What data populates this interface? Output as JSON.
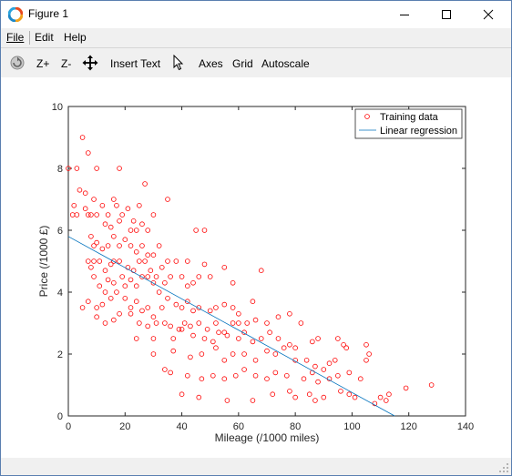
{
  "window": {
    "title": "Figure 1"
  },
  "menu": {
    "file": "File",
    "edit": "Edit",
    "help": "Help"
  },
  "toolbar": {
    "zoom_in": "Z+",
    "zoom_out": "Z-",
    "insert_text": "Insert Text",
    "axes": "Axes",
    "grid": "Grid",
    "autoscale": "Autoscale"
  },
  "chart_data": {
    "type": "scatter",
    "xlabel": "Mileage (/1000 miles)",
    "ylabel": "Price (/1000 £)",
    "xlim": [
      0,
      140
    ],
    "ylim": [
      0,
      10
    ],
    "xticks": [
      0,
      20,
      40,
      60,
      80,
      100,
      120,
      140
    ],
    "yticks": [
      0,
      2,
      4,
      6,
      8,
      10
    ],
    "legend_position": "top-right",
    "colors": {
      "training": "#ff0000",
      "regression": "#0072bd"
    },
    "series": [
      {
        "name": "Training data",
        "kind": "markers",
        "points": [
          [
            0,
            8
          ],
          [
            3,
            8
          ],
          [
            5,
            9
          ],
          [
            7,
            8.5
          ],
          [
            10,
            8
          ],
          [
            18,
            8
          ],
          [
            27,
            7.5
          ],
          [
            35,
            7
          ],
          [
            4,
            7.3
          ],
          [
            6,
            7.2
          ],
          [
            2,
            6.8
          ],
          [
            1.5,
            6.5
          ],
          [
            3,
            6.5
          ],
          [
            6,
            6.7
          ],
          [
            7,
            6.5
          ],
          [
            8,
            6.5
          ],
          [
            9,
            7
          ],
          [
            10,
            6.5
          ],
          [
            12,
            6.8
          ],
          [
            14,
            6.5
          ],
          [
            16,
            7
          ],
          [
            17,
            6.8
          ],
          [
            19,
            6.5
          ],
          [
            21,
            6.7
          ],
          [
            23,
            6.3
          ],
          [
            25,
            6.8
          ],
          [
            13,
            6.2
          ],
          [
            15,
            6.1
          ],
          [
            18,
            6.3
          ],
          [
            22,
            6
          ],
          [
            24,
            6
          ],
          [
            26,
            6.2
          ],
          [
            30,
            6.5
          ],
          [
            28,
            6
          ],
          [
            8,
            5.8
          ],
          [
            9,
            5.5
          ],
          [
            10,
            5.6
          ],
          [
            12,
            5.4
          ],
          [
            14,
            5.5
          ],
          [
            16,
            5.8
          ],
          [
            18,
            5.5
          ],
          [
            20,
            5.7
          ],
          [
            22,
            5.5
          ],
          [
            24,
            5.3
          ],
          [
            26,
            5.5
          ],
          [
            28,
            5.2
          ],
          [
            30,
            5.2
          ],
          [
            32,
            5.5
          ],
          [
            45,
            6
          ],
          [
            48,
            6
          ],
          [
            7,
            5
          ],
          [
            8,
            4.8
          ],
          [
            9,
            5
          ],
          [
            11,
            5
          ],
          [
            13,
            4.7
          ],
          [
            15,
            4.9
          ],
          [
            16,
            5
          ],
          [
            18,
            5
          ],
          [
            19,
            4.5
          ],
          [
            21,
            4.8
          ],
          [
            23,
            4.7
          ],
          [
            25,
            5
          ],
          [
            27,
            5
          ],
          [
            29,
            4.7
          ],
          [
            31,
            4.5
          ],
          [
            33,
            4.8
          ],
          [
            35,
            5
          ],
          [
            38,
            5
          ],
          [
            42,
            5
          ],
          [
            48,
            4.9
          ],
          [
            55,
            4.8
          ],
          [
            9,
            4.5
          ],
          [
            11,
            4.2
          ],
          [
            13,
            4
          ],
          [
            14,
            4.4
          ],
          [
            16,
            4.3
          ],
          [
            17,
            4
          ],
          [
            20,
            4.2
          ],
          [
            22,
            4.4
          ],
          [
            24,
            4.2
          ],
          [
            26,
            4.5
          ],
          [
            28,
            4.5
          ],
          [
            30,
            4.3
          ],
          [
            32,
            4
          ],
          [
            34,
            4.3
          ],
          [
            36,
            4.5
          ],
          [
            40,
            4.5
          ],
          [
            42,
            4.2
          ],
          [
            44,
            4.3
          ],
          [
            46,
            4.5
          ],
          [
            50,
            4.5
          ],
          [
            58,
            4.3
          ],
          [
            68,
            4.7
          ],
          [
            5,
            3.5
          ],
          [
            7,
            3.7
          ],
          [
            10,
            3.5
          ],
          [
            12,
            3.6
          ],
          [
            15,
            3.8
          ],
          [
            18,
            3.3
          ],
          [
            20,
            3.8
          ],
          [
            22,
            3.5
          ],
          [
            24,
            3.7
          ],
          [
            26,
            3.4
          ],
          [
            28,
            3.5
          ],
          [
            30,
            3.2
          ],
          [
            33,
            3.5
          ],
          [
            35,
            3.8
          ],
          [
            38,
            3.6
          ],
          [
            40,
            3.5
          ],
          [
            42,
            3.7
          ],
          [
            44,
            3.4
          ],
          [
            46,
            3.5
          ],
          [
            50,
            3.4
          ],
          [
            52,
            3.5
          ],
          [
            55,
            3.6
          ],
          [
            58,
            3.5
          ],
          [
            60,
            3.3
          ],
          [
            65,
            3.7
          ],
          [
            10,
            3.2
          ],
          [
            13,
            3
          ],
          [
            16,
            3.1
          ],
          [
            22,
            3.3
          ],
          [
            25,
            3
          ],
          [
            28,
            2.9
          ],
          [
            31,
            3
          ],
          [
            34,
            3
          ],
          [
            36,
            2.9
          ],
          [
            39,
            2.8
          ],
          [
            41,
            3
          ],
          [
            43,
            2.9
          ],
          [
            46,
            3
          ],
          [
            49,
            2.8
          ],
          [
            52,
            3
          ],
          [
            55,
            2.7
          ],
          [
            58,
            3
          ],
          [
            60,
            3
          ],
          [
            63,
            3
          ],
          [
            66,
            3.1
          ],
          [
            70,
            3
          ],
          [
            74,
            3.2
          ],
          [
            78,
            3.3
          ],
          [
            82,
            3
          ],
          [
            24,
            2.5
          ],
          [
            30,
            2.5
          ],
          [
            37,
            2.5
          ],
          [
            40,
            2.8
          ],
          [
            44,
            2.6
          ],
          [
            48,
            2.5
          ],
          [
            51,
            2.4
          ],
          [
            53,
            2.7
          ],
          [
            56,
            2.6
          ],
          [
            60,
            2.5
          ],
          [
            62,
            2.7
          ],
          [
            65,
            2.4
          ],
          [
            68,
            2.5
          ],
          [
            71,
            2.7
          ],
          [
            74,
            2.5
          ],
          [
            78,
            2.3
          ],
          [
            80,
            2.2
          ],
          [
            86,
            2.4
          ],
          [
            88,
            2.5
          ],
          [
            95,
            2.5
          ],
          [
            97,
            2.3
          ],
          [
            98,
            2.2
          ],
          [
            30,
            2
          ],
          [
            37,
            2.1
          ],
          [
            43,
            1.9
          ],
          [
            47,
            2
          ],
          [
            52,
            2.2
          ],
          [
            55,
            1.8
          ],
          [
            58,
            2
          ],
          [
            62,
            2
          ],
          [
            66,
            1.8
          ],
          [
            70,
            2.1
          ],
          [
            73,
            2
          ],
          [
            76,
            2.2
          ],
          [
            80,
            1.8
          ],
          [
            84,
            1.8
          ],
          [
            87,
            1.6
          ],
          [
            90,
            1.5
          ],
          [
            92,
            1.7
          ],
          [
            94,
            1.8
          ],
          [
            106,
            2
          ],
          [
            105,
            2.3
          ],
          [
            34,
            1.5
          ],
          [
            36,
            1.4
          ],
          [
            42,
            1.3
          ],
          [
            47,
            1.2
          ],
          [
            51,
            1.3
          ],
          [
            55,
            1.2
          ],
          [
            59,
            1.3
          ],
          [
            62,
            1.5
          ],
          [
            66,
            1.3
          ],
          [
            70,
            1.2
          ],
          [
            73,
            1.4
          ],
          [
            77,
            1.3
          ],
          [
            83,
            1.2
          ],
          [
            86,
            1.4
          ],
          [
            88,
            1.1
          ],
          [
            92,
            1.2
          ],
          [
            95,
            1.3
          ],
          [
            99,
            1.4
          ],
          [
            103,
            1.2
          ],
          [
            40,
            0.7
          ],
          [
            46,
            0.6
          ],
          [
            56,
            0.5
          ],
          [
            65,
            0.5
          ],
          [
            72,
            0.7
          ],
          [
            78,
            0.8
          ],
          [
            85,
            0.7
          ],
          [
            87,
            0.5
          ],
          [
            90,
            0.6
          ],
          [
            96,
            0.8
          ],
          [
            99,
            0.7
          ],
          [
            101,
            0.6
          ],
          [
            108,
            0.4
          ],
          [
            110,
            0.6
          ],
          [
            112,
            0.5
          ],
          [
            113,
            0.7
          ],
          [
            119,
            0.9
          ],
          [
            128,
            1
          ],
          [
            105,
            1.8
          ],
          [
            80,
            0.6
          ]
        ]
      },
      {
        "name": "Linear regression",
        "kind": "line",
        "points": [
          [
            0,
            5.8
          ],
          [
            115,
            0
          ]
        ]
      }
    ]
  }
}
